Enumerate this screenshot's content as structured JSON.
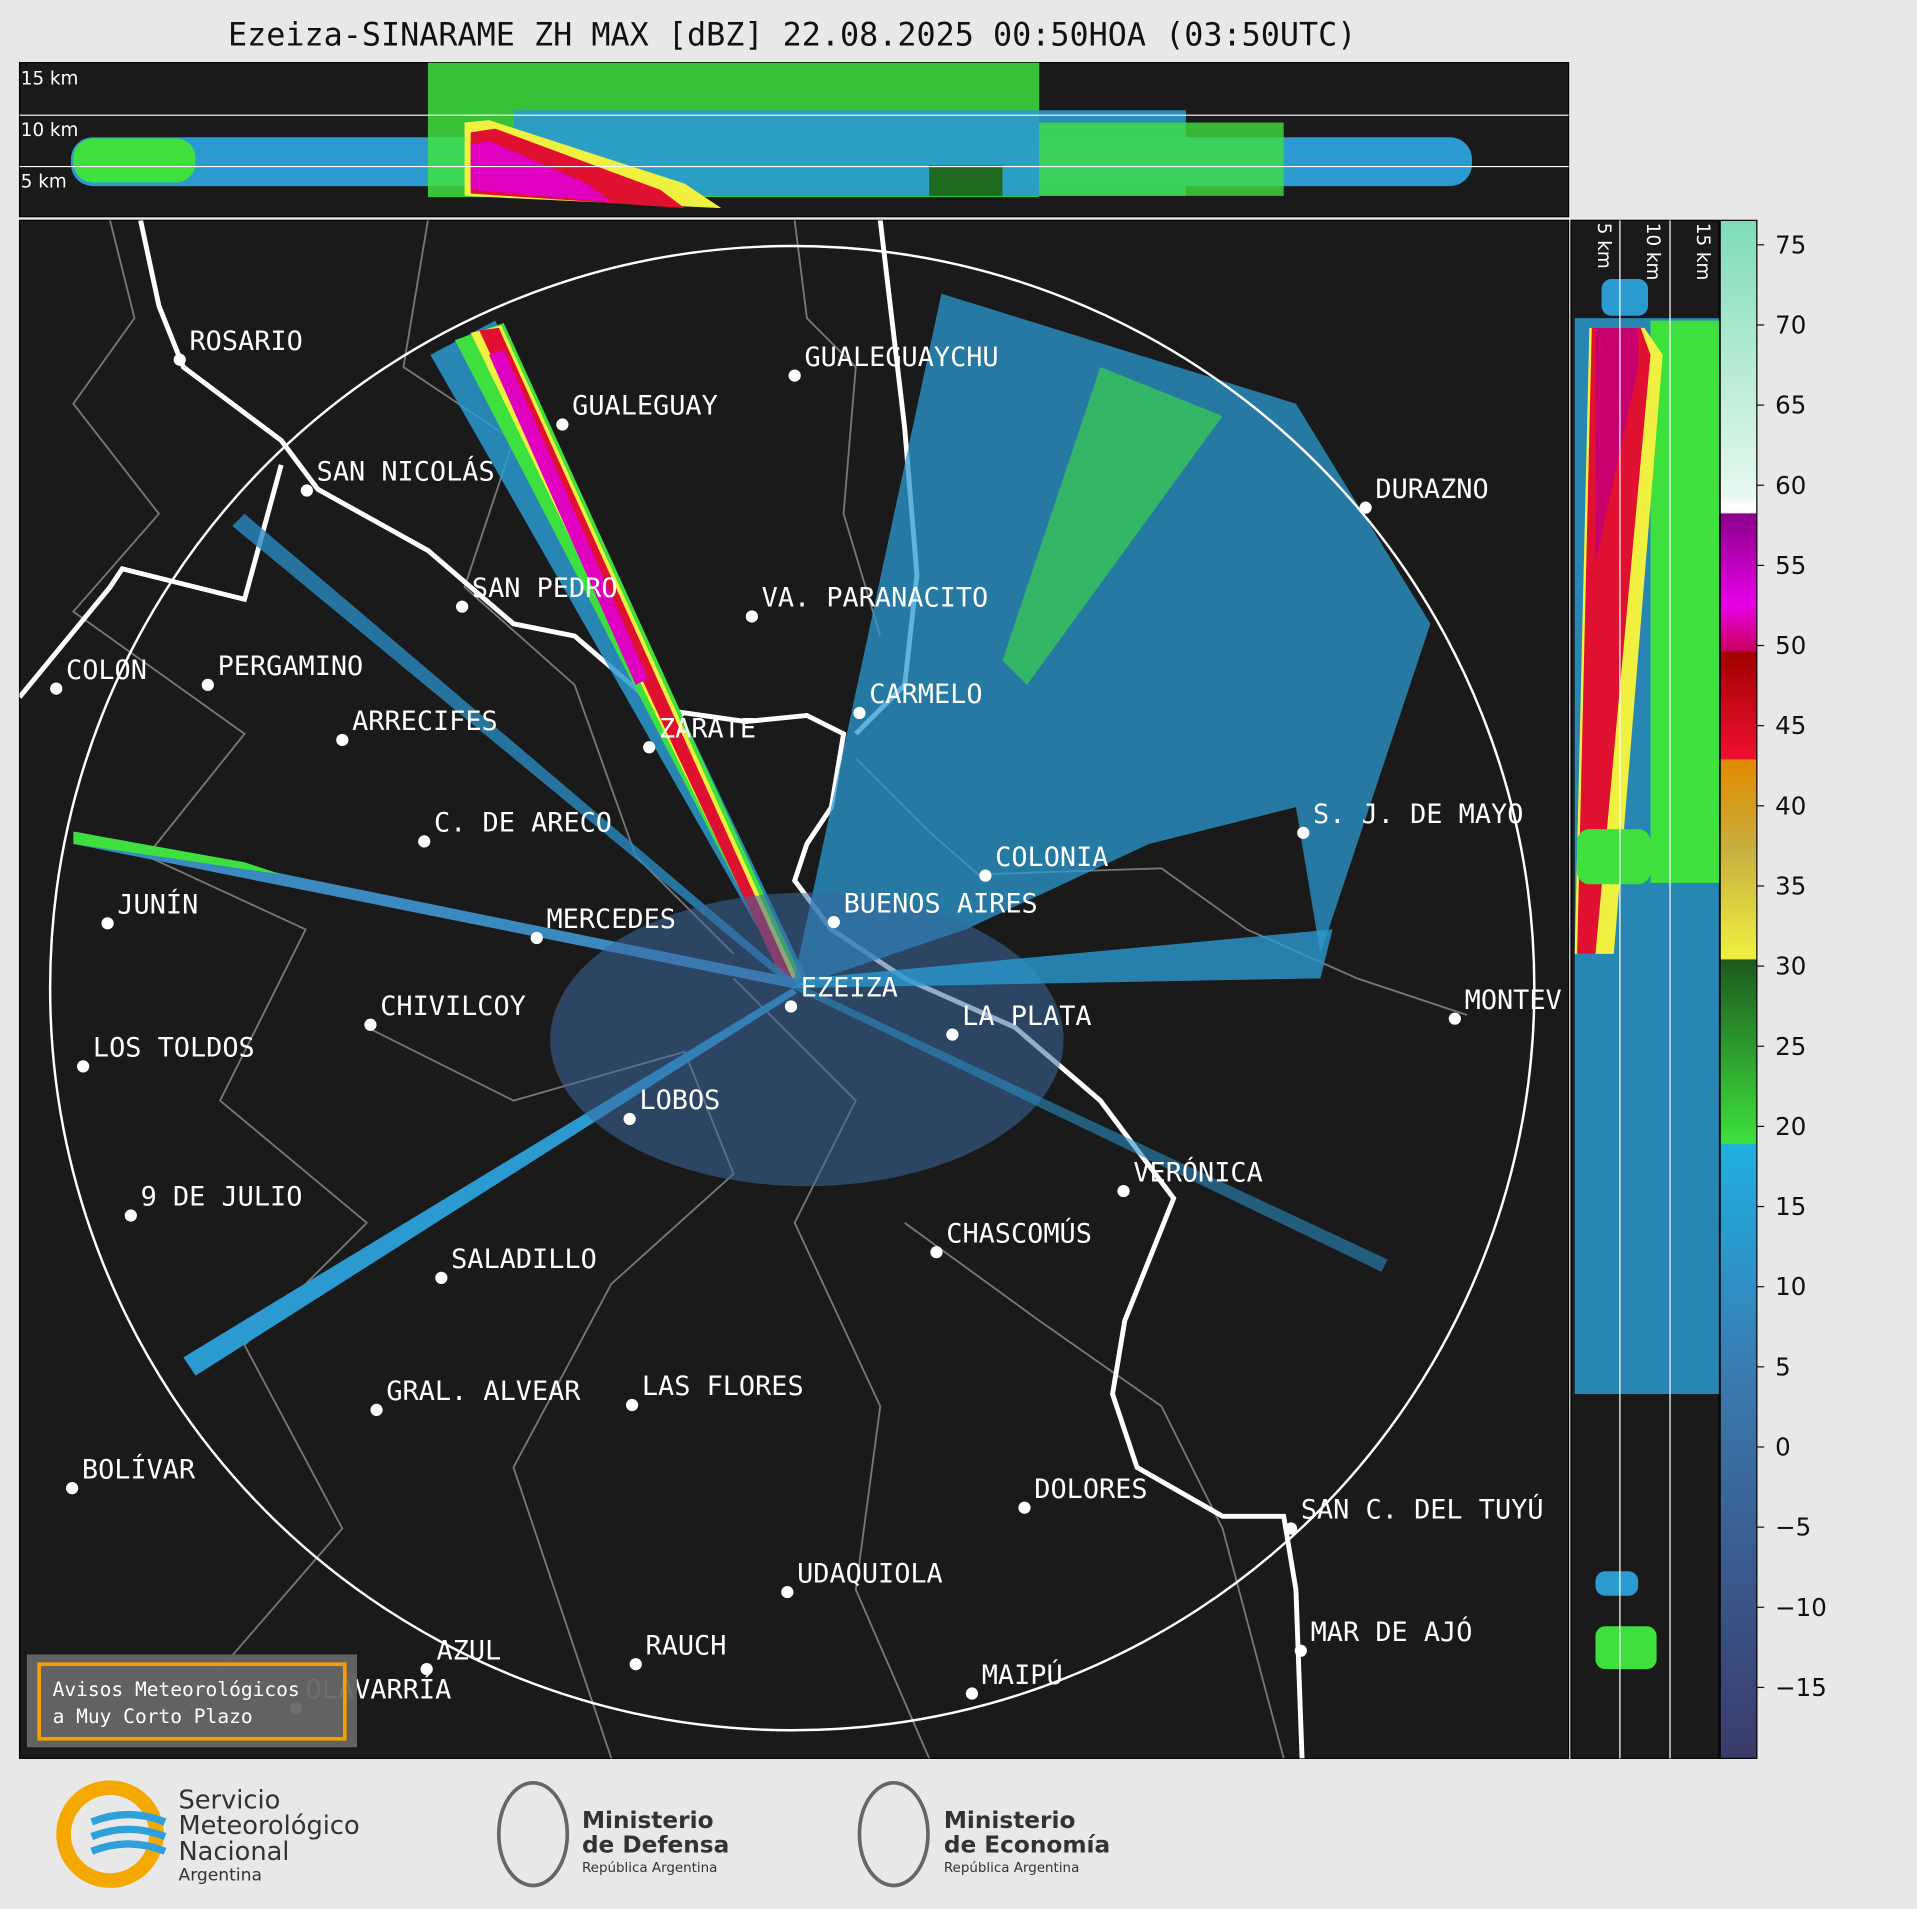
{
  "header": {
    "title": "Ezeiza-SINARAME ZH MAX [dBZ] 22.08.2025 00:50HOA (03:50UTC)"
  },
  "top_section": {
    "labels": [
      "15 km",
      "10 km",
      "5 km"
    ]
  },
  "side_section": {
    "labels": [
      "5 km",
      "10 km",
      "15 km"
    ]
  },
  "colorbar": {
    "labels": [
      "75",
      "70",
      "65",
      "60",
      "55",
      "50",
      "45",
      "40",
      "35",
      "30",
      "25",
      "20",
      "15",
      "10",
      "5",
      "0",
      "−5",
      "−10",
      "−15"
    ]
  },
  "cities": [
    "ROSARIO",
    "GUALEGUAYCHU",
    "GUALEGUAY",
    "SAN NICOLÁS",
    "DURAZNO",
    "SAN PEDRO",
    "VA. PARANACITO",
    "COLON",
    "PERGAMINO",
    "CARMELO",
    "ARRECIFES",
    "ZÁRATE",
    "C. DE ARECO",
    "S. J. DE MAYO",
    "COLONIA",
    "BUENOS AIRES",
    "JUNÍN",
    "MERCEDES",
    "EZEIZA",
    "MONTEV",
    "LA PLATA",
    "CHIVILCOY",
    "LOS TOLDOS",
    "LOBOS",
    "VERÓNICA",
    "9 DE JULIO",
    "CHASCOMÚS",
    "SALADILLO",
    "GRAL. ALVEAR",
    "LAS FLORES",
    "BOLÍVAR",
    "DOLORES",
    "SAN C. DEL TUYÚ",
    "UDAQUIOLA",
    "MAR DE AJÓ",
    "AZUL",
    "RAUCH",
    "MAIPÚ",
    "OLAVARRÍA"
  ],
  "warning_box": {
    "lines": [
      "Avisos Meteorológicos",
      "a Muy Corto Plazo"
    ]
  },
  "logos": {
    "smn": [
      "Servicio",
      "Meteorológico",
      "Nacional",
      "Argentina"
    ],
    "defensa": [
      "Ministerio",
      "de Defensa",
      "República Argentina"
    ],
    "economia": [
      "Ministerio",
      "de Economía",
      "República Argentina"
    ]
  }
}
